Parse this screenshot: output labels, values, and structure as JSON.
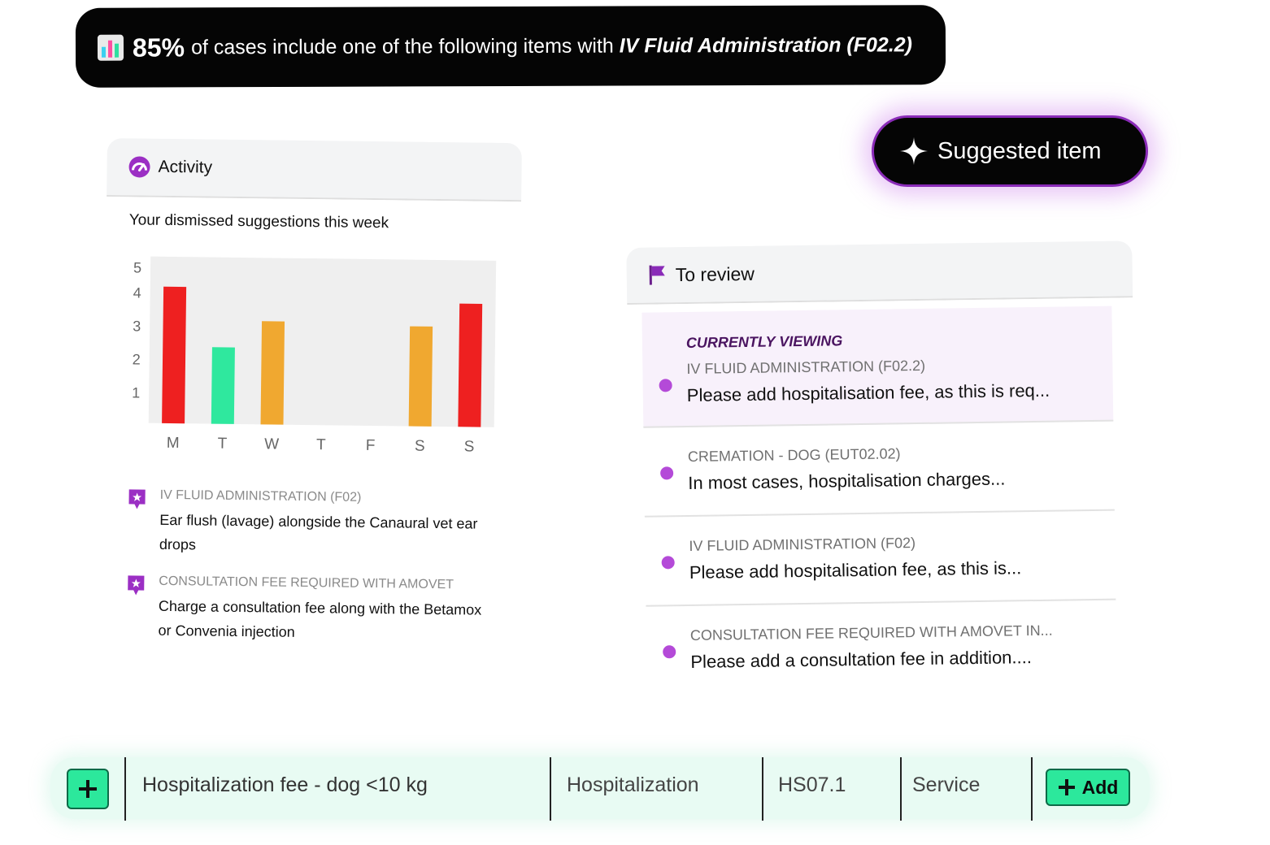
{
  "banner": {
    "percent": "85%",
    "text": "of cases include one of the following items with",
    "item": "IV Fluid Administration (F02.2)"
  },
  "suggest": {
    "label": "Suggested item"
  },
  "activity": {
    "title": "Activity",
    "subtitle": "Your dismissed suggestions this week",
    "recommendations": [
      {
        "label": "IV FLUID ADMINISTRATION (F02)",
        "desc": "Ear flush (lavage) alongside the Canaural vet ear drops"
      },
      {
        "label": "CONSULTATION FEE REQUIRED WITH AMOVET",
        "desc": "Charge a consultation fee along with the Betamox or Convenia injection"
      }
    ]
  },
  "chart_data": {
    "type": "bar",
    "categories": [
      "M",
      "T",
      "W",
      "T",
      "F",
      "S",
      "S"
    ],
    "values": [
      4.1,
      2.3,
      3.1,
      0,
      0,
      3.0,
      3.7
    ],
    "bar_colors": [
      "#ee2020",
      "#2fe89e",
      "#f0a830",
      null,
      null,
      "#f0a830",
      "#ee2020"
    ],
    "yticks": [
      1,
      2,
      3,
      4,
      5
    ],
    "ylim": [
      0,
      5
    ],
    "grid": false,
    "title": "",
    "xlabel": "",
    "ylabel": ""
  },
  "review": {
    "title": "To review",
    "currently_viewing": "CURRENTLY VIEWING",
    "items": [
      {
        "label": "IV FLUID ADMINISTRATION (F02.2)",
        "desc": "Please add hospitalisation fee, as this is req..."
      },
      {
        "label": "CREMATION - DOG (EUT02.02)",
        "desc": "In most cases, hospitalisation charges..."
      },
      {
        "label": "IV FLUID ADMINISTRATION (F02)",
        "desc": "Please add hospitalisation fee, as this is..."
      },
      {
        "label": "CONSULTATION FEE REQUIRED WITH AMOVET IN...",
        "desc": "Please add a consultation fee in addition...."
      }
    ]
  },
  "bottom": {
    "name": "Hospitalization fee - dog <10 kg",
    "category": "Hospitalization",
    "code": "HS07.1",
    "type": "Service",
    "add_label": "Add"
  },
  "colors": {
    "accent_purple": "#b44ad8",
    "accent_green": "#2ce89c",
    "dark": "#050505"
  }
}
